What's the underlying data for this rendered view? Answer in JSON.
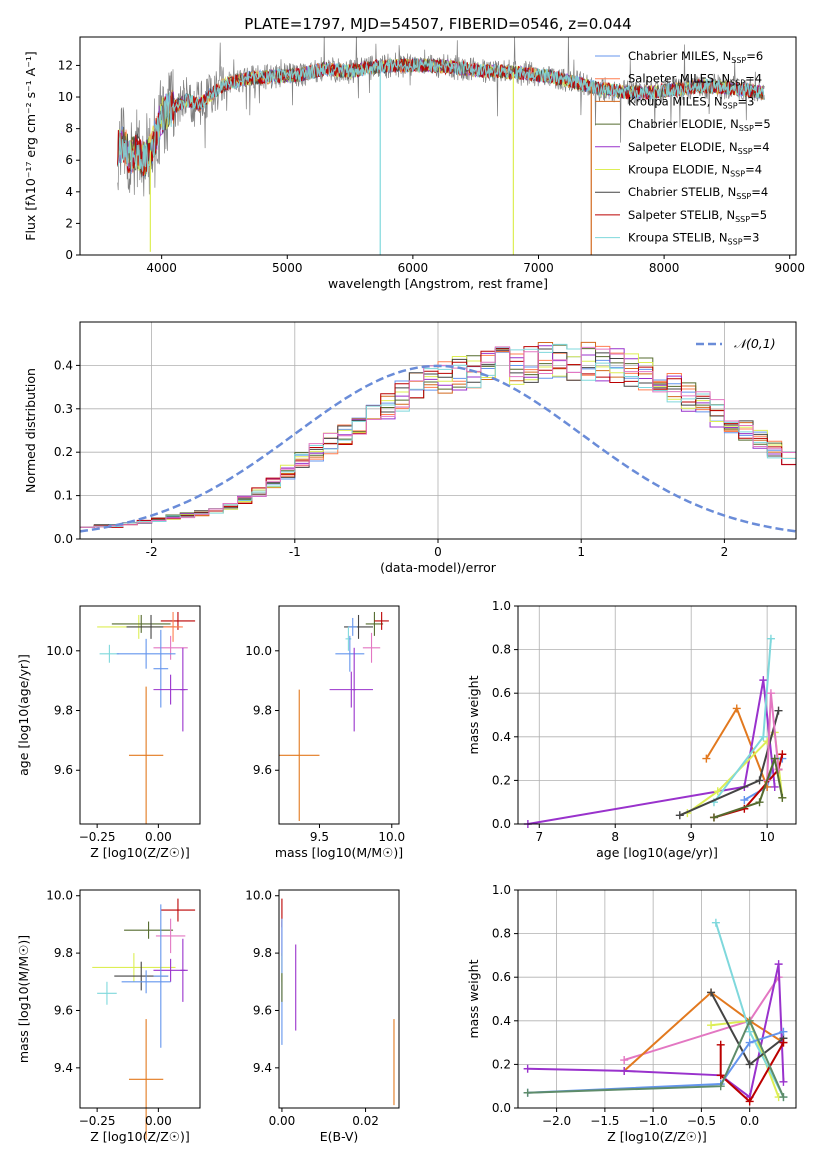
{
  "chart_data": [
    {
      "id": "spectrum",
      "type": "line",
      "title": "PLATE=1797, MJD=54507, FIBERID=0546, z=0.044",
      "xlabel": "wavelength [Angstrom, rest frame]",
      "ylabel": "Flux [fλ10⁻¹⁷ erg cm⁻² s⁻¹ A⁻¹]",
      "xlim": [
        3350,
        9050
      ],
      "ylim": [
        0,
        13.8
      ],
      "xticks": [
        4000,
        5000,
        6000,
        7000,
        8000,
        9000
      ],
      "yticks": [
        0,
        2,
        4,
        6,
        8,
        10,
        12
      ],
      "grid": false,
      "legend_position": "upper-right",
      "series": [
        {
          "name": "Chabrier MILES, N_SSP=6",
          "color": "#6495ED"
        },
        {
          "name": "Salpeter MILES, N_SSP=4",
          "color": "#FF7F50"
        },
        {
          "name": "Kroupa MILES, N_SSP=3",
          "color": "#D2691E"
        },
        {
          "name": "Chabrier ELODIE, N_SSP=5",
          "color": "#556B2F"
        },
        {
          "name": "Salpeter ELODIE, N_SSP=4",
          "color": "#9932CC"
        },
        {
          "name": "Kroupa ELODIE, N_SSP=4",
          "color": "#DDEE55"
        },
        {
          "name": "Chabrier STELIB, N_SSP=4",
          "color": "#444444"
        },
        {
          "name": "Salpeter STELIB, N_SSP=5",
          "color": "#BB0000"
        },
        {
          "name": "Kroupa STELIB, N_SSP=3",
          "color": "#7FD8DC"
        }
      ],
      "data_color": "#808080",
      "envelope": {
        "x": [
          3650,
          3700,
          3750,
          3800,
          3850,
          3900,
          3950,
          4000,
          4100,
          4200,
          4300,
          4400,
          4500,
          4700,
          4900,
          5100,
          5200,
          5300,
          5500,
          5700,
          5900,
          6100,
          6300,
          6500,
          6700,
          6900,
          7100,
          7300,
          7500,
          7700,
          7900,
          8100,
          8300,
          8500,
          8700,
          8800
        ],
        "y": [
          6.8,
          7.0,
          6.2,
          6.6,
          6.0,
          6.4,
          7.5,
          8.8,
          9.4,
          9.8,
          9.5,
          10.2,
          10.8,
          11.2,
          11.3,
          11.4,
          11.6,
          11.8,
          11.6,
          11.9,
          12.0,
          12.0,
          11.9,
          11.7,
          11.6,
          11.5,
          11.3,
          10.9,
          10.5,
          10.3,
          10.3,
          10.5,
          10.7,
          10.6,
          10.4,
          10.2
        ]
      },
      "sky_spikes": [
        {
          "x": 5740,
          "y": 0,
          "color": "#7FD8DC"
        },
        {
          "x": 6800,
          "y": 0,
          "color": "#DDEE55"
        },
        {
          "x": 7420,
          "y": 0,
          "color": "#D2691E"
        },
        {
          "x": 3910,
          "y": 0.2,
          "color": "#DDEE55"
        }
      ]
    },
    {
      "id": "residuals",
      "type": "histogram",
      "xlabel": "(data-model)/error",
      "ylabel": "Normed distribution",
      "xlim": [
        -2.5,
        2.5
      ],
      "ylim": [
        0,
        0.5
      ],
      "xticks": [
        -2,
        -1,
        0,
        1,
        2
      ],
      "yticks": [
        0.0,
        0.1,
        0.2,
        0.3,
        0.4
      ],
      "grid": true,
      "bin_edges_start": -2.5,
      "bin_width": 0.1,
      "base_hist": [
        0.03,
        0.03,
        0.03,
        0.035,
        0.04,
        0.045,
        0.05,
        0.055,
        0.06,
        0.065,
        0.075,
        0.09,
        0.11,
        0.13,
        0.155,
        0.18,
        0.2,
        0.22,
        0.24,
        0.26,
        0.28,
        0.31,
        0.33,
        0.35,
        0.36,
        0.37,
        0.38,
        0.39,
        0.39,
        0.4,
        0.4,
        0.4,
        0.41,
        0.41,
        0.41,
        0.41,
        0.4,
        0.4,
        0.39,
        0.38,
        0.37,
        0.35,
        0.33,
        0.31,
        0.29,
        0.27,
        0.25,
        0.23,
        0.21,
        0.19,
        0.17,
        0.15,
        0.13,
        0.115,
        0.1,
        0.085,
        0.075,
        0.065,
        0.06,
        0.05,
        0.045,
        0.04,
        0.035,
        0.03,
        0.03,
        0.025,
        0.025,
        0.025,
        0.02,
        0.02
      ],
      "hist_colors": [
        "#6495ED",
        "#FF7F50",
        "#D2691E",
        "#556B2F",
        "#9932CC",
        "#DDEE55",
        "#444444",
        "#BB0000",
        "#7FD8DC",
        "#E377C2"
      ],
      "overlay": {
        "label": "𝒩(0,1)",
        "color": "#6A8CD8",
        "style": "dashed"
      }
    },
    {
      "id": "age_vs_Z",
      "type": "errorbar",
      "xlabel": "Z [log10(Z/Z☉)]",
      "ylabel": "age  [log10(age/yr)]",
      "xlim": [
        -0.32,
        0.17
      ],
      "ylim": [
        9.42,
        10.15
      ],
      "xticks": [
        -0.25,
        0.0
      ],
      "xticklabels": [
        "−0.25",
        "0.00"
      ],
      "yticks": [
        9.6,
        9.8,
        10.0
      ],
      "points": [
        {
          "x": -0.08,
          "y": 10.08,
          "xerr": 0.17,
          "yerr": 0.04,
          "color": "#DDEE55"
        },
        {
          "x": -0.07,
          "y": 10.09,
          "xerr": 0.12,
          "yerr": 0.03,
          "color": "#556B2F"
        },
        {
          "x": -0.03,
          "y": 10.08,
          "xerr": 0.1,
          "yerr": 0.04,
          "color": "#444444"
        },
        {
          "x": 0.08,
          "y": 10.1,
          "xerr": 0.07,
          "yerr": 0.03,
          "color": "#BB0000"
        },
        {
          "x": 0.06,
          "y": 10.08,
          "xerr": 0.04,
          "yerr": 0.05,
          "color": "#FF7F50"
        },
        {
          "x": 0.05,
          "y": 10.01,
          "xerr": 0.07,
          "yerr": 0.04,
          "color": "#E377C2"
        },
        {
          "x": -0.2,
          "y": 9.99,
          "xerr": 0.04,
          "yerr": 0.03,
          "color": "#7FD8DC"
        },
        {
          "x": -0.05,
          "y": 9.99,
          "xerr": 0.12,
          "yerr": 0.05,
          "color": "#6495ED"
        },
        {
          "x": 0.01,
          "y": 9.94,
          "xerr": 0.03,
          "yerr": 0.13,
          "color": "#6495ED"
        },
        {
          "x": 0.05,
          "y": 9.87,
          "xerr": 0.07,
          "yerr": 0.05,
          "color": "#9932CC"
        },
        {
          "x": 0.1,
          "y": 9.87,
          "xerr": 0.01,
          "yerr": 0.14,
          "color": "#9932CC"
        },
        {
          "x": -0.05,
          "y": 9.65,
          "xerr": 0.07,
          "yerr": 0.23,
          "color": "#E2791F"
        }
      ]
    },
    {
      "id": "age_vs_mass",
      "type": "errorbar",
      "xlabel": "mass [log10(M/M☉)]",
      "ylabel": "",
      "xlim": [
        9.22,
        10.05
      ],
      "ylim": [
        9.42,
        10.15
      ],
      "xticks": [
        9.5,
        10.0
      ],
      "xticklabels": [
        "9.5",
        "10.0"
      ],
      "yticks": [
        9.6,
        9.8,
        10.0
      ],
      "points": [
        {
          "x": 9.77,
          "y": 10.08,
          "xerr": 0.1,
          "yerr": 0.04,
          "color": "#444444"
        },
        {
          "x": 9.88,
          "y": 10.09,
          "xerr": 0.06,
          "yerr": 0.04,
          "color": "#556B2F"
        },
        {
          "x": 9.93,
          "y": 10.1,
          "xerr": 0.05,
          "yerr": 0.03,
          "color": "#BB0000"
        },
        {
          "x": 9.73,
          "y": 10.08,
          "xerr": 0.03,
          "yerr": 0.03,
          "color": "#6495ED"
        },
        {
          "x": 9.86,
          "y": 10.01,
          "xerr": 0.06,
          "yerr": 0.05,
          "color": "#E377C2"
        },
        {
          "x": 9.7,
          "y": 10.04,
          "xerr": 0.02,
          "yerr": 0.04,
          "color": "#7FD8DC"
        },
        {
          "x": 9.71,
          "y": 9.99,
          "xerr": 0.1,
          "yerr": 0.06,
          "color": "#6495ED"
        },
        {
          "x": 9.72,
          "y": 9.87,
          "xerr": 0.15,
          "yerr": 0.06,
          "color": "#9932CC"
        },
        {
          "x": 9.74,
          "y": 9.87,
          "xerr": 0.01,
          "yerr": 0.14,
          "color": "#9932CC"
        },
        {
          "x": 9.36,
          "y": 9.65,
          "xerr": 0.14,
          "yerr": 0.22,
          "color": "#E2791F"
        }
      ]
    },
    {
      "id": "weight_vs_age",
      "type": "line",
      "xlabel": "age  [log10(age/yr)]",
      "ylabel": "mass weight",
      "xlim": [
        6.72,
        10.38
      ],
      "ylim": [
        0,
        1.0
      ],
      "xticks": [
        7,
        8,
        9,
        10
      ],
      "yticks": [
        0.0,
        0.2,
        0.4,
        0.6,
        0.8,
        1.0
      ],
      "grid": true,
      "series": [
        {
          "color": "#6495ED",
          "x": [
            9.7,
            10.0,
            10.1,
            10.2
          ],
          "y": [
            0.11,
            0.17,
            0.3,
            0.3
          ]
        },
        {
          "color": "#E2791F",
          "x": [
            9.2,
            9.6,
            10.0
          ],
          "y": [
            0.3,
            0.53,
            0.17
          ]
        },
        {
          "color": "#9932CC",
          "x": [
            6.85,
            9.7,
            9.95,
            10.1
          ],
          "y": [
            0.0,
            0.17,
            0.66,
            0.17
          ]
        },
        {
          "color": "#DDEE55",
          "x": [
            8.95,
            9.35,
            10.0,
            10.1,
            10.2
          ],
          "y": [
            0.05,
            0.15,
            0.38,
            0.42,
            0.12
          ]
        },
        {
          "color": "#7FD8DC",
          "x": [
            9.3,
            9.95,
            10.05
          ],
          "y": [
            0.1,
            0.4,
            0.85
          ]
        },
        {
          "color": "#444444",
          "x": [
            8.85,
            9.9,
            10.15
          ],
          "y": [
            0.04,
            0.2,
            0.52
          ]
        },
        {
          "color": "#BB0000",
          "x": [
            9.3,
            9.7,
            10.15,
            10.2
          ],
          "y": [
            0.03,
            0.07,
            0.25,
            0.32
          ]
        },
        {
          "color": "#E377C2",
          "x": [
            10.0,
            10.05,
            10.15
          ],
          "y": [
            0.2,
            0.6,
            0.25
          ]
        },
        {
          "color": "#556B2F",
          "x": [
            9.3,
            9.9,
            10.1,
            10.2
          ],
          "y": [
            0.03,
            0.1,
            0.3,
            0.12
          ]
        }
      ]
    },
    {
      "id": "mass_vs_Z",
      "type": "errorbar",
      "xlabel": "Z [log10(Z/Z☉)]",
      "ylabel": "mass [log10(M/M☉)]",
      "xlim": [
        -0.32,
        0.17
      ],
      "ylim": [
        9.26,
        10.02
      ],
      "xticks": [
        -0.25,
        0.0
      ],
      "xticklabels": [
        "−0.25",
        "0.00"
      ],
      "yticks": [
        9.4,
        9.6,
        9.8,
        10.0
      ],
      "points": [
        {
          "x": 0.08,
          "y": 9.95,
          "xerr": 0.07,
          "yerr": 0.04,
          "color": "#BB0000"
        },
        {
          "x": -0.04,
          "y": 9.88,
          "xerr": 0.1,
          "yerr": 0.03,
          "color": "#556B2F"
        },
        {
          "x": 0.05,
          "y": 9.86,
          "xerr": 0.06,
          "yerr": 0.06,
          "color": "#E377C2"
        },
        {
          "x": -0.1,
          "y": 9.75,
          "xerr": 0.17,
          "yerr": 0.05,
          "color": "#DDEE55"
        },
        {
          "x": -0.07,
          "y": 9.72,
          "xerr": 0.11,
          "yerr": 0.05,
          "color": "#444444"
        },
        {
          "x": 0.05,
          "y": 9.74,
          "xerr": 0.07,
          "yerr": 0.04,
          "color": "#9932CC"
        },
        {
          "x": -0.05,
          "y": 9.7,
          "xerr": 0.1,
          "yerr": 0.04,
          "color": "#6495ED"
        },
        {
          "x": 0.01,
          "y": 9.72,
          "xerr": 0.03,
          "yerr": 0.25,
          "color": "#6495ED"
        },
        {
          "x": 0.1,
          "y": 9.74,
          "xerr": 0.01,
          "yerr": 0.11,
          "color": "#9932CC"
        },
        {
          "x": -0.21,
          "y": 9.66,
          "xerr": 0.04,
          "yerr": 0.04,
          "color": "#7FD8DC"
        },
        {
          "x": -0.05,
          "y": 9.36,
          "xerr": 0.07,
          "yerr": 0.21,
          "color": "#E2791F"
        }
      ]
    },
    {
      "id": "mass_vs_ebv",
      "type": "errorbar",
      "xlabel": "E(B-V)",
      "ylabel": "",
      "xlim": [
        -0.0007,
        0.028
      ],
      "ylim": [
        9.26,
        10.02
      ],
      "xticks": [
        0.0,
        0.02
      ],
      "xticklabels": [
        "0.00",
        "0.02"
      ],
      "yticks": [
        9.4,
        9.6,
        9.8,
        10.0
      ],
      "points": [
        {
          "x": 0.0,
          "y": 9.94,
          "xerr": 0.0,
          "yerr": 0.05,
          "color": "#BB0000"
        },
        {
          "x": 0.0,
          "y": 9.85,
          "xerr": 0.0,
          "yerr": 0.06,
          "color": "#E377C2"
        },
        {
          "x": 0.0,
          "y": 9.75,
          "xerr": 0.0,
          "yerr": 0.05,
          "color": "#DDEE55"
        },
        {
          "x": 0.0,
          "y": 9.7,
          "xerr": 0.0,
          "yerr": 0.22,
          "color": "#6495ED"
        },
        {
          "x": 0.0,
          "y": 9.68,
          "xerr": 0.0,
          "yerr": 0.05,
          "color": "#556B2F"
        },
        {
          "x": 0.0033,
          "y": 9.68,
          "xerr": 0.0,
          "yerr": 0.15,
          "color": "#9932CC"
        },
        {
          "x": 0.0268,
          "y": 9.42,
          "xerr": 0.0,
          "yerr": 0.15,
          "color": "#E2791F"
        }
      ]
    },
    {
      "id": "weight_vs_Z",
      "type": "line",
      "xlabel": "Z [log10(Z/Z☉)]",
      "ylabel": "mass weight",
      "xlim": [
        -2.4,
        0.48
      ],
      "ylim": [
        0,
        1.0
      ],
      "xticks": [
        -2.0,
        -1.5,
        -1.0,
        -0.5,
        0.0
      ],
      "xticklabels": [
        "−2.0",
        "−1.5",
        "−1.0",
        "−0.5",
        "0.0"
      ],
      "yticks": [
        0.0,
        0.2,
        0.4,
        0.6,
        0.8,
        1.0
      ],
      "grid": true,
      "series": [
        {
          "color": "#E377C2",
          "x": [
            -1.3,
            0.0,
            0.3
          ],
          "y": [
            0.22,
            0.4,
            0.6
          ]
        },
        {
          "color": "#E2791F",
          "x": [
            -1.3,
            -0.4,
            0.0,
            0.35
          ],
          "y": [
            0.17,
            0.53,
            0.4,
            0.3
          ]
        },
        {
          "color": "#9932CC",
          "x": [
            -2.3,
            -1.3,
            -0.3,
            0.0,
            0.3,
            0.35
          ],
          "y": [
            0.18,
            0.17,
            0.15,
            0.05,
            0.66,
            0.12
          ]
        },
        {
          "color": "#DDEE55",
          "x": [
            -0.4,
            0.0,
            0.3
          ],
          "y": [
            0.38,
            0.4,
            0.05
          ]
        },
        {
          "color": "#7FD8DC",
          "x": [
            -0.35,
            0.0,
            0.35
          ],
          "y": [
            0.85,
            0.35,
            0.05
          ]
        },
        {
          "color": "#444444",
          "x": [
            -0.4,
            0.0,
            0.35
          ],
          "y": [
            0.53,
            0.2,
            0.32
          ]
        },
        {
          "color": "#BB0000",
          "x": [
            -0.3,
            -0.3,
            0.0,
            0.35
          ],
          "y": [
            0.29,
            0.15,
            0.03,
            0.3
          ]
        },
        {
          "color": "#6495ED",
          "x": [
            -2.3,
            -0.3,
            0.0,
            0.35
          ],
          "y": [
            0.07,
            0.11,
            0.3,
            0.35
          ]
        },
        {
          "color": "#5E8C6A",
          "x": [
            -2.3,
            -0.3,
            0.0,
            0.35
          ],
          "y": [
            0.07,
            0.1,
            0.4,
            0.05
          ]
        }
      ]
    }
  ]
}
